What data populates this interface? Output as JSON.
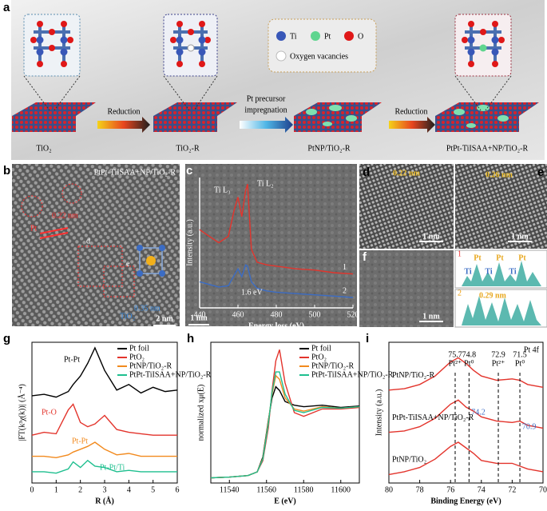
{
  "panels": {
    "a": {
      "letter": "a",
      "legend": [
        "Ti",
        "Pt",
        "O",
        "Oxygen vacancies"
      ],
      "arrows": [
        "Reduction",
        "Reduction"
      ],
      "impregnation_label": [
        "Pt precursor",
        "impregnation"
      ],
      "samples": [
        "TiO₂",
        "TiO₂-R",
        "PtNP/TiO₂-R",
        "PtPt-TiISAA+NP/TiO₂-R"
      ]
    },
    "b": {
      "letter": "b",
      "title": "PtPt-TiISAA+NP/TiO₂-R",
      "annotations": [
        "0.22 nm",
        "Pt",
        "d",
        "e",
        "0.35 nm",
        "TiO₂"
      ],
      "scale": "2 nm"
    },
    "d": {
      "letter": "d",
      "annotations": [
        "0.22 nm",
        "0.26 nm"
      ],
      "scale": "1 nm"
    },
    "e": {
      "letter": "e",
      "scale": "1 nm"
    },
    "f": {
      "letter": "f",
      "scale": "1 nm",
      "profile_indices": [
        "1",
        "2"
      ],
      "profile_top": [
        "Pt",
        "Pt",
        "Pt",
        "Ti",
        "Ti",
        "Ti"
      ],
      "profile_bottom": "0.29 nm"
    }
  },
  "chart_data": [
    {
      "type": "line",
      "letter": "c",
      "xlabel": "Energy loss (eV)",
      "ylabel": "Intensity (a.u.)",
      "xlim": [
        440,
        520
      ],
      "xticks": [
        440,
        460,
        480,
        500,
        520
      ],
      "ylim": [
        0,
        10
      ],
      "annotations": [
        "Ti L₃",
        "Ti L₂",
        "1.6 eV"
      ],
      "scale": "1 nm",
      "x": [
        440,
        445,
        450,
        455,
        458,
        460,
        462,
        464,
        465,
        467,
        470,
        475,
        480,
        490,
        500,
        510,
        520
      ],
      "series": [
        {
          "name": "1",
          "color": "#e3342c",
          "values": [
            6,
            5.5,
            5,
            5.5,
            7.5,
            8.5,
            7,
            9,
            9.5,
            4.5,
            3.5,
            3.3,
            3.2,
            3,
            2.9,
            2.7,
            2.6
          ]
        },
        {
          "name": "2",
          "color": "#3b6cc4",
          "values": [
            2,
            1.8,
            1.6,
            1.7,
            2.5,
            3,
            2.4,
            3.3,
            3.2,
            2,
            1.5,
            1.3,
            1.2,
            1.1,
            1,
            0.9,
            0.8
          ]
        }
      ]
    },
    {
      "type": "line",
      "letter": "g",
      "xlabel": "R (Å)",
      "ylabel": "|FT(k³χ(k))| (Å⁻⁴)",
      "xlim": [
        0,
        6
      ],
      "xticks": [
        0,
        1,
        2,
        3,
        4,
        5,
        6
      ],
      "ylim": [
        0,
        10
      ],
      "legend": "upper right",
      "annotations": [
        "Pt-Pt",
        "Pt-O",
        "Pt-Pt",
        "Pt-Pt/Ti"
      ],
      "x": [
        0,
        0.5,
        1,
        1.5,
        1.7,
        2,
        2.3,
        2.6,
        3,
        3.5,
        4,
        4.5,
        5,
        5.5,
        6
      ],
      "series": [
        {
          "name": "Pt foil",
          "color": "#000000",
          "values": [
            6.2,
            6.3,
            6.1,
            6.5,
            7,
            7.6,
            8.5,
            9.6,
            8,
            6.6,
            7,
            6.4,
            6.8,
            6.5,
            6.6
          ]
        },
        {
          "name": "PtO₂",
          "color": "#e3342c",
          "values": [
            3.4,
            3.6,
            3.5,
            5.2,
            5.6,
            4.3,
            4,
            4.2,
            4.8,
            3.8,
            3.6,
            3.5,
            3.4,
            3.4,
            3.4
          ]
        },
        {
          "name": "PtNP/TiO₂-R",
          "color": "#f28a1e",
          "values": [
            1.9,
            1.9,
            1.8,
            2,
            2.2,
            2.4,
            2.6,
            2.9,
            2.4,
            2,
            2.1,
            1.9,
            1.9,
            1.9,
            1.9
          ]
        },
        {
          "name": "PtPt-TiISAA+NP/TiO₂-R",
          "color": "#1fbf8f",
          "values": [
            0.8,
            0.8,
            0.7,
            1,
            1.5,
            1.1,
            1.6,
            1.2,
            1.1,
            0.8,
            0.9,
            0.8,
            0.8,
            0.8,
            0.8
          ]
        }
      ]
    },
    {
      "type": "line",
      "letter": "h",
      "xlabel": "E (eV)",
      "ylabel": "normalized xμ(E)",
      "xlim": [
        11530,
        11610
      ],
      "xticks": [
        11540,
        11560,
        11580,
        11600
      ],
      "ylim": [
        -0.05,
        1.85
      ],
      "legend": "upper right",
      "x": [
        11530,
        11540,
        11550,
        11555,
        11558,
        11561,
        11563,
        11565,
        11567,
        11570,
        11575,
        11580,
        11590,
        11600,
        11610
      ],
      "series": [
        {
          "name": "Pt foil",
          "color": "#000000",
          "values": [
            0.02,
            0.03,
            0.05,
            0.1,
            0.3,
            0.8,
            1.1,
            1.25,
            1.2,
            1.05,
            1.0,
            0.98,
            1.0,
            0.97,
            0.99
          ]
        },
        {
          "name": "PtO₂",
          "color": "#e3342c",
          "values": [
            0.02,
            0.03,
            0.05,
            0.1,
            0.25,
            0.7,
            1.2,
            1.6,
            1.75,
            1.3,
            0.9,
            0.85,
            0.95,
            0.95,
            0.97
          ]
        },
        {
          "name": "PtNP/TiO₂-R",
          "color": "#f28a1e",
          "values": [
            0.02,
            0.03,
            0.05,
            0.1,
            0.28,
            0.78,
            1.15,
            1.4,
            1.35,
            1.1,
            0.95,
            0.92,
            0.98,
            0.96,
            0.98
          ]
        },
        {
          "name": "PtPt-TiISAA+NP/TiO₂-R",
          "color": "#1fbf8f",
          "values": [
            0.02,
            0.03,
            0.05,
            0.1,
            0.27,
            0.75,
            1.18,
            1.45,
            1.45,
            1.15,
            0.93,
            0.9,
            0.97,
            0.96,
            0.98
          ]
        }
      ]
    },
    {
      "type": "line",
      "letter": "i",
      "xlabel": "Binding Energy (eV)",
      "ylabel": "Intensity (a.u.)",
      "xlim": [
        80,
        70
      ],
      "xticks": [
        80,
        78,
        76,
        74,
        72,
        70
      ],
      "ylim": [
        0,
        10
      ],
      "title": "Pt 4f",
      "peaks": [
        75.7,
        74.8,
        72.9,
        71.5
      ],
      "peak_species": [
        "Pt²⁺",
        "Pt⁰",
        "Pt²⁺",
        "Pt⁰"
      ],
      "shifted_peaks": [
        74.2,
        70.9
      ],
      "sample_labels": [
        "PtNP/TiO₂-R",
        "PtPt-TiISAA+NP/TiO₂-R",
        "PtNP/TiO₂"
      ],
      "x": [
        80,
        79,
        78,
        77,
        76,
        75.5,
        75,
        74.5,
        74,
        73,
        72,
        71.5,
        71,
        70
      ],
      "series": [
        {
          "color": "#e3342c",
          "values": [
            6.6,
            6.7,
            7,
            7.6,
            8.6,
            8.9,
            8.5,
            8.0,
            7.6,
            7.3,
            7.4,
            7.3,
            7.0,
            6.8
          ]
        },
        {
          "color": "#e3342c",
          "values": [
            3.6,
            3.7,
            4,
            4.6,
            5.6,
            5.9,
            5.4,
            5.1,
            4.7,
            4.4,
            4.3,
            4.4,
            4.1,
            3.9
          ]
        },
        {
          "color": "#e3342c",
          "values": [
            0.6,
            0.8,
            1.1,
            1.7,
            2.6,
            2.9,
            2.5,
            2.1,
            1.6,
            1.4,
            1.4,
            1.2,
            1.0,
            0.8
          ]
        }
      ]
    }
  ]
}
